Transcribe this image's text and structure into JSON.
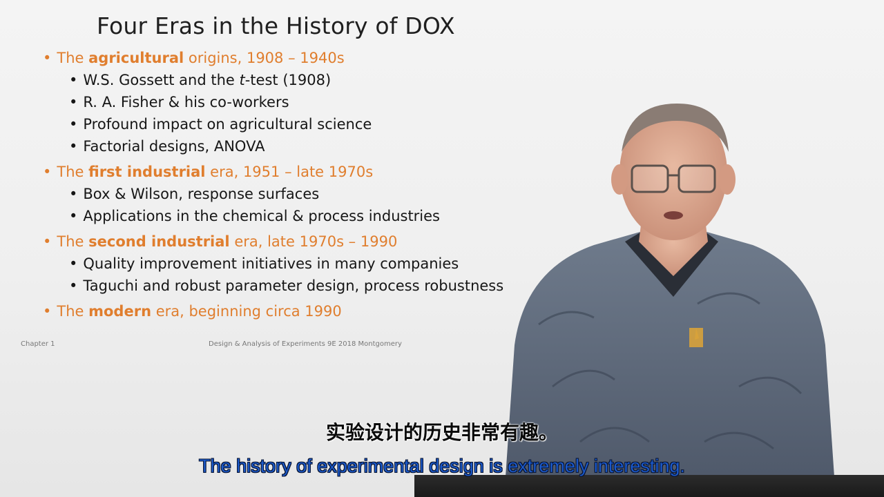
{
  "slide": {
    "title": "Four Eras in the History of DOX",
    "eras": [
      {
        "pre": "The ",
        "bold": "agricultural",
        "post": " origins, 1908 – 1940s",
        "items": [
          {
            "a": "W.S. Gossett and the ",
            "i": "t",
            "b": "-test (1908)"
          },
          {
            "a": "R. A. Fisher & his co-workers"
          },
          {
            "a": "Profound impact on agricultural science"
          },
          {
            "a": "Factorial designs, ANOVA"
          }
        ]
      },
      {
        "pre": "The ",
        "bold": "first industrial",
        "post": " era, 1951 – late 1970s",
        "items": [
          {
            "a": "Box & Wilson, response surfaces"
          },
          {
            "a": "Applications in the chemical & process industries"
          }
        ]
      },
      {
        "pre": "The ",
        "bold": "second industrial",
        "post": " era, late 1970s – 1990",
        "items": [
          {
            "a": "Quality improvement initiatives in many companies"
          },
          {
            "a": "Taguchi and robust parameter design, process robustness"
          }
        ]
      },
      {
        "pre": "The ",
        "bold": "modern",
        "post": " era, beginning circa 1990",
        "items": []
      }
    ],
    "footer_left": "Chapter 1",
    "footer_center": "Design & Analysis of Experiments 9E 2018 Montgomery",
    "bullet": "•"
  },
  "subtitles": {
    "chinese": "实验设计的历史非常有趣。",
    "english": "The history of experimental design is extremely interesting."
  },
  "colors": {
    "era_orange": "#e07e2e",
    "subtitle_blue": "#1e5fd6"
  }
}
